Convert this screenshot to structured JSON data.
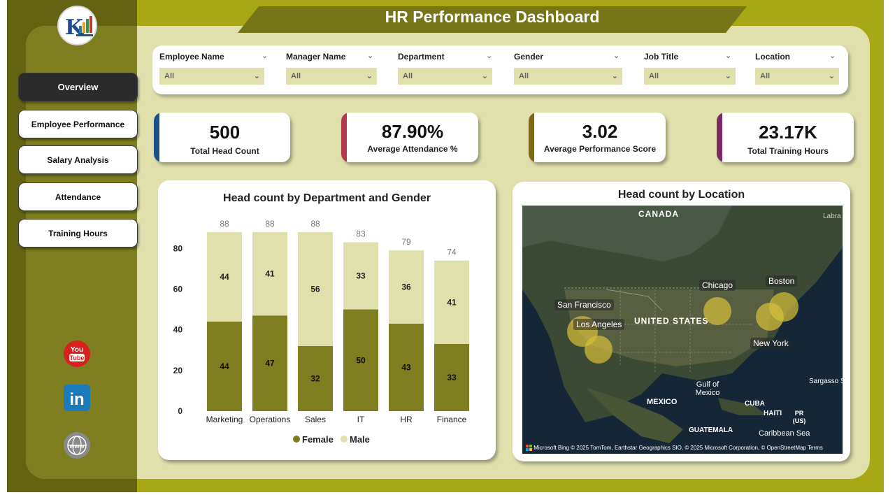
{
  "header": {
    "title": "HR Performance Dashboard"
  },
  "nav": [
    {
      "label": "Overview",
      "active": true
    },
    {
      "label": "Employee Performance",
      "active": false
    },
    {
      "label": "Salary Analysis",
      "active": false
    },
    {
      "label": "Attendance",
      "active": false
    },
    {
      "label": "Training Hours",
      "active": false
    }
  ],
  "filters": [
    {
      "label": "Employee Name",
      "value": "All"
    },
    {
      "label": "Manager Name",
      "value": "All"
    },
    {
      "label": "Department",
      "value": "All"
    },
    {
      "label": "Gender",
      "value": "All"
    },
    {
      "label": "Job Title",
      "value": "All"
    },
    {
      "label": "Location",
      "value": "All"
    }
  ],
  "kpis": [
    {
      "value": "500",
      "label": "Total Head Count",
      "color": "#1f4e8c"
    },
    {
      "value": "87.90%",
      "label": "Average Attendance %",
      "color": "#b03a4e"
    },
    {
      "value": "3.02",
      "label": "Average Performance Score",
      "color": "#7a6a10"
    },
    {
      "value": "23.17K",
      "label": "Total Training Hours",
      "color": "#7a2a6a"
    }
  ],
  "colors": {
    "female": "#7e7e21",
    "male": "#e0e0ad"
  },
  "chart_data": {
    "type": "bar",
    "stacked": true,
    "title": "Head count by Department and Gender",
    "categories": [
      "Marketing",
      "Operations",
      "Sales",
      "IT",
      "HR",
      "Finance"
    ],
    "series": [
      {
        "name": "Female",
        "values": [
          44,
          47,
          32,
          50,
          43,
          33
        ]
      },
      {
        "name": "Male",
        "values": [
          44,
          41,
          56,
          33,
          36,
          41
        ]
      }
    ],
    "totals": [
      88,
      88,
      88,
      83,
      79,
      74
    ],
    "yticks": [
      0,
      20,
      40,
      60,
      80
    ],
    "ylim": [
      0,
      88
    ],
    "legend": "bottom"
  },
  "map": {
    "title": "Head count by Location",
    "region_labels": [
      "CANADA",
      "UNITED STATES",
      "Gulf of Mexico",
      "MEXICO",
      "CUBA",
      "HAITI",
      "PR (US)",
      "GUATEMALA",
      "Caribbean Sea",
      "Sargasso Sea",
      "Labra"
    ],
    "cities": [
      "Chicago",
      "Boston",
      "San Francisco",
      "Los Angeles",
      "New York"
    ],
    "credit": "© 2025 TomTom, Earthstar Geographics SIO, © 2025 Microsoft Corporation, © OpenStreetMap  Terms",
    "provider": "Microsoft Bing"
  }
}
